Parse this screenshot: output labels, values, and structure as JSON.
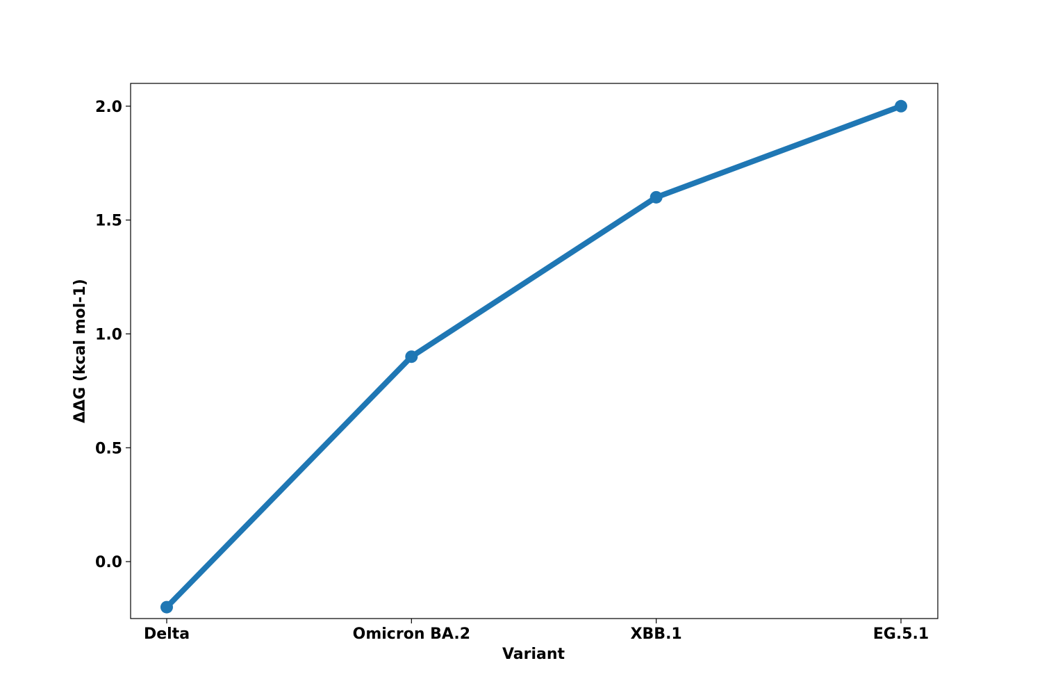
{
  "chart_data": {
    "type": "line",
    "categories": [
      "Delta",
      "Omicron BA.2",
      "XBB.1",
      "EG.5.1"
    ],
    "series": [
      {
        "values": [
          -0.2,
          0.9,
          1.6,
          2.0
        ],
        "color": "#1f77b4",
        "marker": "circle"
      }
    ],
    "xlabel": "Variant",
    "ylabel": "ΔΔG (kcal mol-1)",
    "ylim": [
      -0.25,
      2.1
    ],
    "yticks": [
      "0.0",
      "0.5",
      "1.0",
      "1.5",
      "2.0"
    ],
    "grid": false,
    "legend": "none"
  }
}
